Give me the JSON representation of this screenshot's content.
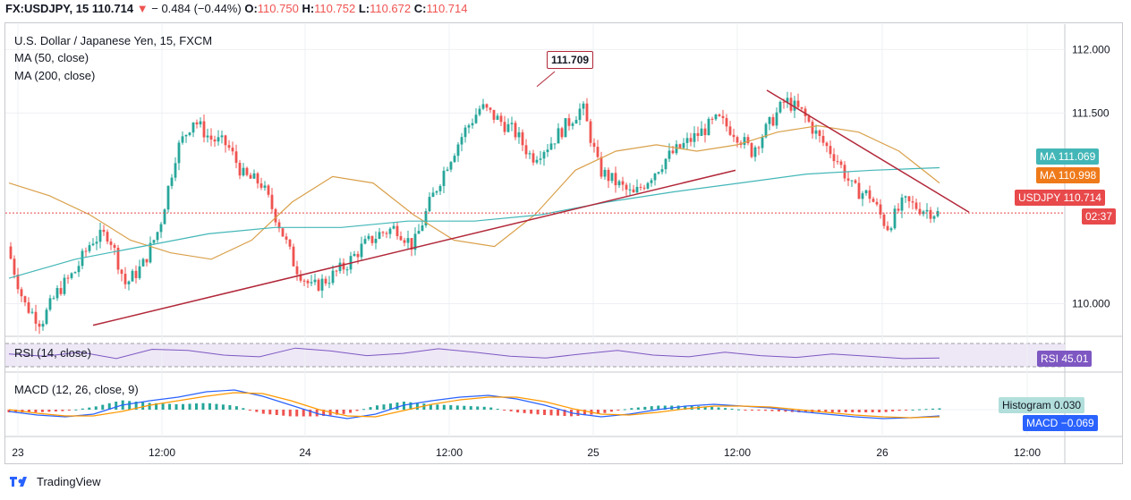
{
  "header": {
    "symbol": "FX:USDJPY, 15",
    "last": "110.714",
    "change": "− 0.484 (−0.44%)",
    "o_label": "O:",
    "o": "110.750",
    "h_label": "H:",
    "h": "110.752",
    "l_label": "L:",
    "l": "110.672",
    "c_label": "C:",
    "c": "110.714"
  },
  "legend": {
    "title": "U.S. Dollar / Japanese Yen, 15, FXCM",
    "ma50": "MA (50, close)",
    "ma200": "MA (200, close)",
    "rsi": "RSI (14, close)",
    "macd": "MACD (12, 26, close, 9)"
  },
  "tags": {
    "ma1": "MA",
    "ma1_val": "111.069",
    "ma2": "MA",
    "ma2_val": "110.998",
    "price": "USDJPY",
    "price_val": "110.714",
    "countdown": "02:37",
    "rsi": "RSI",
    "rsi_val": "45.01",
    "hist": "Histogram",
    "hist_val": "0.030",
    "macd": "MACD",
    "macd_val": "−0.069"
  },
  "annotation": {
    "high_label": "111.709"
  },
  "brand": "TradingView",
  "colors": {
    "up": "#26a69a",
    "down": "#ef5350",
    "ma50": "#d9a04a",
    "ma200": "#43b6b7",
    "trend": "#b2283a",
    "price_line": "#e8494b",
    "rsi": "#7e57c2",
    "macd": "#2962ff",
    "signal": "#ff9800"
  },
  "chart_data": {
    "type": "candlestick",
    "title": "U.S. Dollar / Japanese Yen, 15, FXCM",
    "yticks": [
      "112.000",
      "111.500",
      "110.000"
    ],
    "ylim": [
      109.75,
      112.2
    ],
    "xticks": [
      "23",
      "12:00",
      "24",
      "12:00",
      "25",
      "12:00",
      "26",
      "12:00"
    ],
    "last_price": 110.714,
    "ma50_last": 110.998,
    "ma200_last": 111.069,
    "annotated_high": 111.709,
    "rsi_last": 45.01,
    "macd_last": -0.069,
    "histogram_last": 0.03,
    "price_path": [
      110.45,
      110.0,
      109.85,
      110.1,
      110.25,
      110.5,
      110.55,
      110.15,
      110.3,
      110.6,
      111.2,
      111.45,
      111.3,
      111.25,
      111.0,
      110.95,
      110.65,
      110.3,
      110.12,
      110.2,
      110.3,
      110.45,
      110.55,
      110.6,
      110.45,
      110.8,
      111.1,
      111.35,
      111.55,
      111.45,
      111.35,
      111.15,
      111.25,
      111.4,
      111.55,
      111.05,
      110.95,
      110.85,
      111.0,
      111.15,
      111.25,
      111.35,
      111.45,
      111.35,
      111.2,
      111.4,
      111.6,
      111.5,
      111.3,
      111.15,
      110.9,
      110.85,
      110.6,
      110.8,
      110.75,
      110.71
    ],
    "ma50_path": [
      110.95,
      110.85,
      110.7,
      110.5,
      110.4,
      110.35,
      110.5,
      110.8,
      111.0,
      110.95,
      110.7,
      110.5,
      110.45,
      110.7,
      111.05,
      111.2,
      111.25,
      111.2,
      111.25,
      111.35,
      111.4,
      111.35,
      111.2,
      110.95
    ],
    "ma200_path": [
      110.2,
      110.35,
      110.45,
      110.55,
      110.6,
      110.6,
      110.65,
      110.65,
      110.7,
      110.8,
      110.88,
      110.95,
      111.02,
      111.05,
      111.07
    ],
    "rsi_path": [
      52,
      48,
      55,
      44,
      60,
      58,
      50,
      47,
      62,
      57,
      49,
      53,
      61,
      55,
      48,
      45,
      52,
      58,
      50,
      47,
      55,
      49,
      46,
      52,
      48,
      44,
      45
    ],
    "macd_path": [
      -0.02,
      -0.06,
      -0.08,
      -0.05,
      0.05,
      0.1,
      0.14,
      0.2,
      0.22,
      0.15,
      0.05,
      -0.05,
      -0.1,
      -0.05,
      0.05,
      0.1,
      0.14,
      0.16,
      0.12,
      0.05,
      -0.04,
      -0.08,
      -0.05,
      0.0,
      0.04,
      0.06,
      0.04,
      0.02,
      -0.02,
      -0.05,
      -0.08,
      -0.1,
      -0.09,
      -0.07
    ],
    "signal_path": [
      0.0,
      -0.04,
      -0.07,
      -0.07,
      -0.02,
      0.05,
      0.1,
      0.15,
      0.19,
      0.18,
      0.1,
      0.0,
      -0.07,
      -0.08,
      -0.01,
      0.06,
      0.11,
      0.14,
      0.14,
      0.09,
      0.01,
      -0.05,
      -0.06,
      -0.03,
      0.01,
      0.04,
      0.04,
      0.03,
      0.0,
      -0.03,
      -0.06,
      -0.08,
      -0.09,
      -0.08
    ]
  }
}
